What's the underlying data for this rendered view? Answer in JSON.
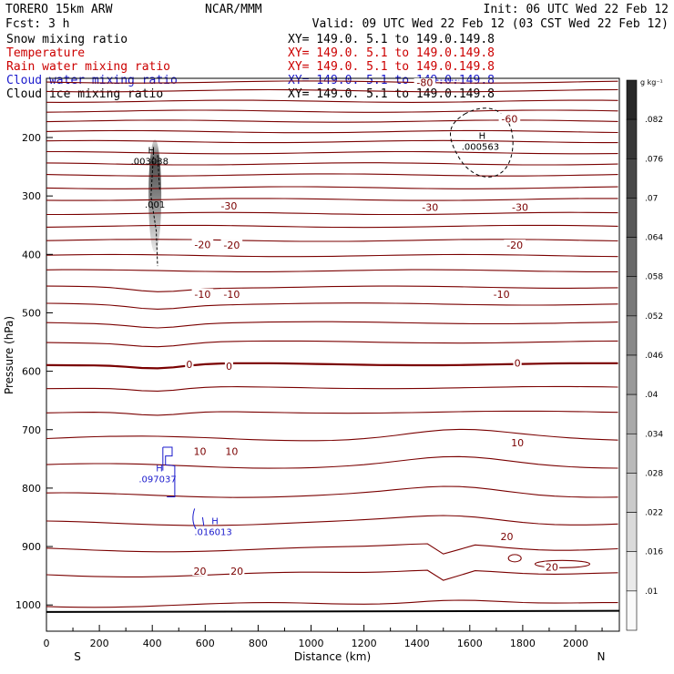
{
  "header": {
    "model": "TORERO  15km ARW",
    "org": "NCAR/MMM",
    "init": "Init: 06 UTC Wed 22 Feb 12",
    "fcst": "Fcst:    3 h",
    "valid": "Valid: 09 UTC Wed 22 Feb 12 (03 CST Wed 22 Feb 12)"
  },
  "fields": [
    {
      "name": "Snow mixing ratio",
      "color": "#000000",
      "xy": "XY= 149.0.  5.1 to 149.0.149.8"
    },
    {
      "name": "Temperature",
      "color": "#cc0000",
      "xy": "XY= 149.0.  5.1 to 149.0.149.8"
    },
    {
      "name": "Rain water mixing ratio",
      "color": "#cc0000",
      "xy": "XY= 149.0.  5.1 to 149.0.149.8"
    },
    {
      "name": "Cloud water mixing ratio",
      "color": "#1a1acc",
      "xy": "XY= 149.0.  5.1 to 149.0.149.8"
    },
    {
      "name": "Cloud ice mixing ratio",
      "color": "#000000",
      "xy": "XY= 149.0.  5.1 to 149.0.149.8"
    }
  ],
  "colorbar": {
    "unit": "g kg⁻¹",
    "labels": [
      ".01",
      ".016",
      ".022",
      ".028",
      ".034",
      ".04",
      ".046",
      ".052",
      ".058",
      ".064",
      ".07",
      ".076",
      ".082"
    ]
  },
  "chart_data": {
    "type": "vertical cross-section contour",
    "title": "Snow mixing ratio / Temperature / Rain water / Cloud water / Cloud ice mixing ratio cross-section",
    "xlabel": "Distance (km)",
    "ylabel": "Pressure (hPa)",
    "xlim": [
      0,
      2180
    ],
    "ylim": [
      1045,
      100
    ],
    "x_ticks": [
      0,
      200,
      400,
      600,
      800,
      1000,
      1200,
      1400,
      1600,
      1800,
      2000
    ],
    "y_ticks": [
      200,
      300,
      400,
      500,
      600,
      700,
      800,
      900,
      1000
    ],
    "orientation_left": "S",
    "orientation_right": "N",
    "temperature_isotherm_pressures": [
      105,
      120,
      138,
      155,
      172,
      190,
      207,
      226,
      245,
      264,
      286,
      306,
      330,
      352,
      376,
      402,
      428,
      456,
      485,
      517,
      550,
      588,
      628,
      670,
      715,
      762,
      812,
      860,
      905,
      948,
      1000
    ],
    "temperature_labels": [
      {
        "text": "-80",
        "x": 1430,
        "p": 106
      },
      {
        "text": "-60",
        "x": 1750,
        "p": 168
      },
      {
        "text": "-30",
        "x": 690,
        "p": 317
      },
      {
        "text": "-30",
        "x": 1450,
        "p": 319
      },
      {
        "text": "-30",
        "x": 1790,
        "p": 319
      },
      {
        "text": "-20",
        "x": 590,
        "p": 383
      },
      {
        "text": "-20",
        "x": 700,
        "p": 384
      },
      {
        "text": "-20",
        "x": 1770,
        "p": 384
      },
      {
        "text": "-10",
        "x": 590,
        "p": 468
      },
      {
        "text": "-10",
        "x": 700,
        "p": 468
      },
      {
        "text": "-10",
        "x": 1720,
        "p": 468
      },
      {
        "text": "0",
        "x": 540,
        "p": 588
      },
      {
        "text": "0",
        "x": 690,
        "p": 591
      },
      {
        "text": "0",
        "x": 1780,
        "p": 586
      },
      {
        "text": "10",
        "x": 580,
        "p": 737
      },
      {
        "text": "10",
        "x": 700,
        "p": 737
      },
      {
        "text": "10",
        "x": 1780,
        "p": 722
      },
      {
        "text": "20",
        "x": 580,
        "p": 942
      },
      {
        "text": "20",
        "x": 720,
        "p": 942
      },
      {
        "text": "20",
        "x": 1740,
        "p": 883
      },
      {
        "text": "20",
        "x": 1910,
        "p": 935
      }
    ],
    "extrema": [
      {
        "label": "H",
        "value": ".003038",
        "x": 390,
        "p": 238,
        "field": "Snow mixing ratio"
      },
      {
        "label": "H",
        "value": ".000563",
        "x": 1640,
        "p": 213,
        "field": "Cloud ice mixing ratio"
      },
      {
        "label": "",
        "value": ".001",
        "x": 410,
        "p": 312,
        "field": "Cloud ice mixing ratio"
      },
      {
        "label": "H",
        "value": ".097037",
        "x": 420,
        "p": 782,
        "field": "Cloud water mixing ratio"
      },
      {
        "label": "H",
        "value": ".016013",
        "x": 630,
        "p": 873,
        "field": "Cloud water mixing ratio"
      }
    ]
  }
}
